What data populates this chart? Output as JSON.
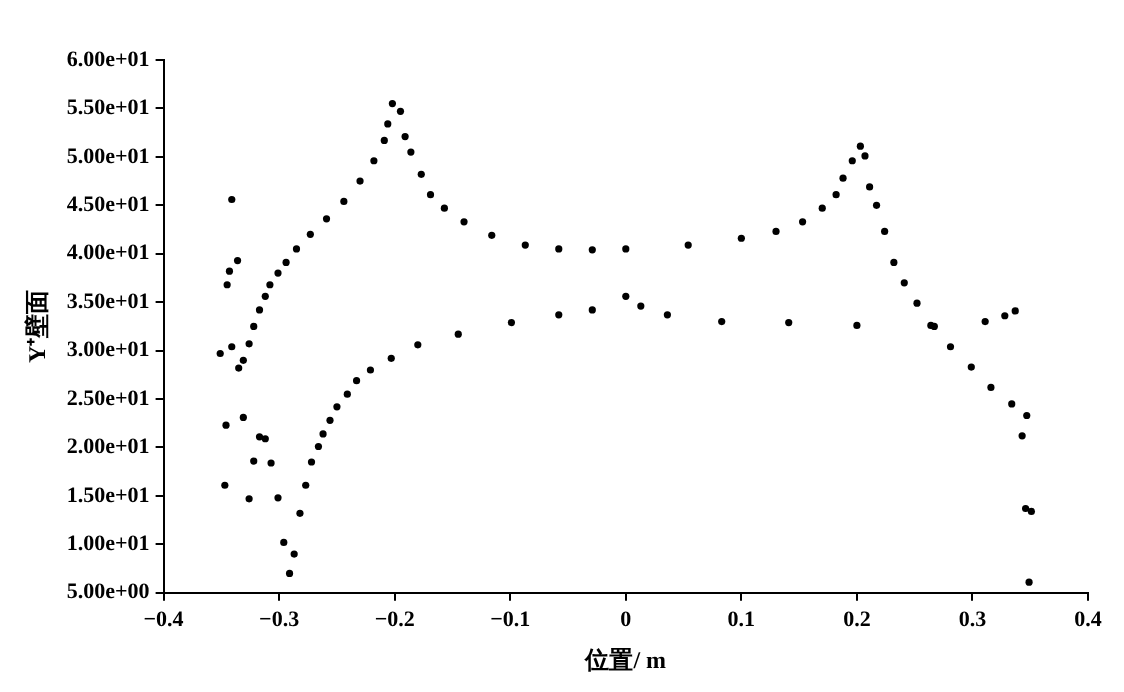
{
  "chart_data": {
    "type": "scatter",
    "xlabel": "位置/ m",
    "ylabel": "Y⁺壁面",
    "marker": "circle",
    "grid": false,
    "legend": false,
    "xlim": [
      -0.4,
      0.4
    ],
    "ylim": [
      5,
      60
    ],
    "xticks": [
      {
        "value": -0.4,
        "label": "−0.4"
      },
      {
        "value": -0.3,
        "label": "−0.3"
      },
      {
        "value": -0.2,
        "label": "−0.2"
      },
      {
        "value": -0.1,
        "label": "−0.1"
      },
      0,
      0.1,
      0.2,
      0.3,
      0.4
    ],
    "yticks": [
      {
        "value": 5,
        "label": "5.00e+00"
      },
      {
        "value": 10,
        "label": "1.00e+01"
      },
      {
        "value": 15,
        "label": "1.50e+01"
      },
      {
        "value": 20,
        "label": "2.00e+01"
      },
      {
        "value": 25,
        "label": "2.50e+01"
      },
      {
        "value": 30,
        "label": "3.00e+01"
      },
      {
        "value": 35,
        "label": "3.50e+01"
      },
      {
        "value": 40,
        "label": "4.00e+01"
      },
      {
        "value": 45,
        "label": "4.50e+01"
      },
      {
        "value": 50,
        "label": "5.00e+01"
      },
      {
        "value": 55,
        "label": "5.50e+01"
      },
      {
        "value": 60,
        "label": "6.00e+01"
      }
    ],
    "series": [
      {
        "color": "#000000",
        "x": [
          -0.326,
          -0.322,
          -0.317,
          -0.312,
          -0.308,
          -0.301,
          -0.294,
          -0.285,
          -0.273,
          -0.259,
          -0.244,
          -0.23,
          -0.218,
          -0.209,
          -0.206,
          -0.202,
          -0.195,
          -0.191,
          -0.186,
          -0.177,
          -0.169,
          -0.157,
          -0.14,
          -0.116,
          -0.087,
          -0.058,
          -0.029,
          0,
          0.054,
          0.1,
          0.13,
          0.153,
          0.17,
          0.182,
          0.188,
          0.196,
          0.203,
          0.207,
          0.211,
          0.217,
          0.224,
          0.232,
          0.241,
          0.252,
          0.267,
          0.281,
          0.299,
          0.316,
          0.334,
          0.347,
          0.343,
          0.346,
          0.351,
          0.349
        ],
        "values": [
          30.7,
          32.5,
          34.2,
          35.6,
          36.8,
          38.0,
          39.1,
          40.5,
          42.0,
          43.6,
          45.4,
          47.5,
          49.6,
          51.7,
          53.4,
          55.5,
          54.7,
          52.1,
          50.5,
          48.2,
          46.1,
          44.7,
          43.3,
          41.9,
          40.9,
          40.5,
          40.4,
          40.5,
          40.9,
          41.6,
          42.3,
          43.3,
          44.7,
          46.1,
          47.8,
          49.6,
          51.1,
          50.1,
          46.9,
          45.0,
          42.3,
          39.1,
          37.0,
          34.9,
          32.5,
          30.4,
          28.3,
          26.2,
          24.5,
          23.3,
          21.2,
          13.7,
          13.4,
          6.1
        ]
      },
      {
        "color": "#000000",
        "x": [
          -0.282,
          -0.277,
          -0.272,
          -0.266,
          -0.262,
          -0.256,
          -0.25,
          -0.241,
          -0.233,
          -0.221,
          -0.203,
          -0.18,
          -0.145,
          -0.099,
          -0.058,
          -0.029,
          0,
          0.013,
          0.036,
          0.083,
          0.141,
          0.2,
          0.264,
          0.311,
          0.328,
          0.337
        ],
        "values": [
          13.2,
          16.1,
          18.5,
          20.1,
          21.4,
          22.8,
          24.2,
          25.5,
          26.9,
          28.0,
          29.2,
          30.6,
          31.7,
          32.9,
          33.7,
          34.2,
          35.6,
          34.6,
          33.7,
          33.0,
          32.9,
          32.6,
          32.6,
          33.0,
          33.6,
          34.1
        ]
      },
      {
        "color": "#000000",
        "x": [
          -0.351,
          -0.347,
          -0.346,
          -0.345,
          -0.343,
          -0.341,
          -0.341,
          -0.336,
          -0.335,
          -0.331,
          -0.331,
          -0.326,
          -0.322,
          -0.317,
          -0.312,
          -0.307,
          -0.301,
          -0.296,
          -0.291,
          -0.287
        ],
        "values": [
          29.7,
          16.1,
          22.3,
          36.8,
          38.2,
          45.6,
          30.4,
          39.3,
          28.2,
          23.1,
          29.0,
          14.7,
          18.6,
          21.1,
          20.9,
          18.4,
          14.8,
          10.2,
          7.0,
          9.0
        ]
      }
    ]
  }
}
